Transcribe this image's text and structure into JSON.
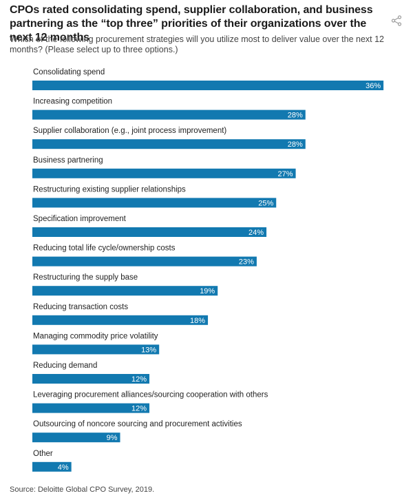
{
  "title": "CPOs rated consolidating spend, supplier collaboration, and business partnering as the “top three” priorities of their organizations over the next 12 months",
  "subtitle": "Which of the following procurement strategies will you utilize most to deliver value over the next 12 months? (Please select up to three options.)",
  "source": "Source: Deloitte Global CPO Survey, 2019.",
  "icons": {
    "share": "share-icon"
  },
  "colors": {
    "bar": "#1279b0",
    "label_text": "#ffffff"
  },
  "chart_data": {
    "type": "bar",
    "orientation": "horizontal",
    "categories": [
      "Consolidating spend",
      "Increasing competition",
      "Supplier collaboration (e.g., joint process improvement)",
      "Business partnering",
      "Restructuring existing supplier relationships",
      "Specification improvement",
      "Reducing total life cycle/ownership costs",
      "Restructuring the supply base",
      "Reducing transaction costs",
      "Managing commodity price volatility",
      "Reducing demand",
      "Leveraging procurement alliances/sourcing cooperation with others",
      "Outsourcing of noncore sourcing and procurement activities",
      "Other"
    ],
    "values": [
      36,
      28,
      28,
      27,
      25,
      24,
      23,
      19,
      18,
      13,
      12,
      12,
      9,
      4
    ],
    "value_labels": [
      "36%",
      "28%",
      "28%",
      "27%",
      "25%",
      "24%",
      "23%",
      "19%",
      "18%",
      "13%",
      "12%",
      "12%",
      "9%",
      "4%"
    ],
    "unit": "%",
    "grid": false,
    "legend": "none"
  }
}
